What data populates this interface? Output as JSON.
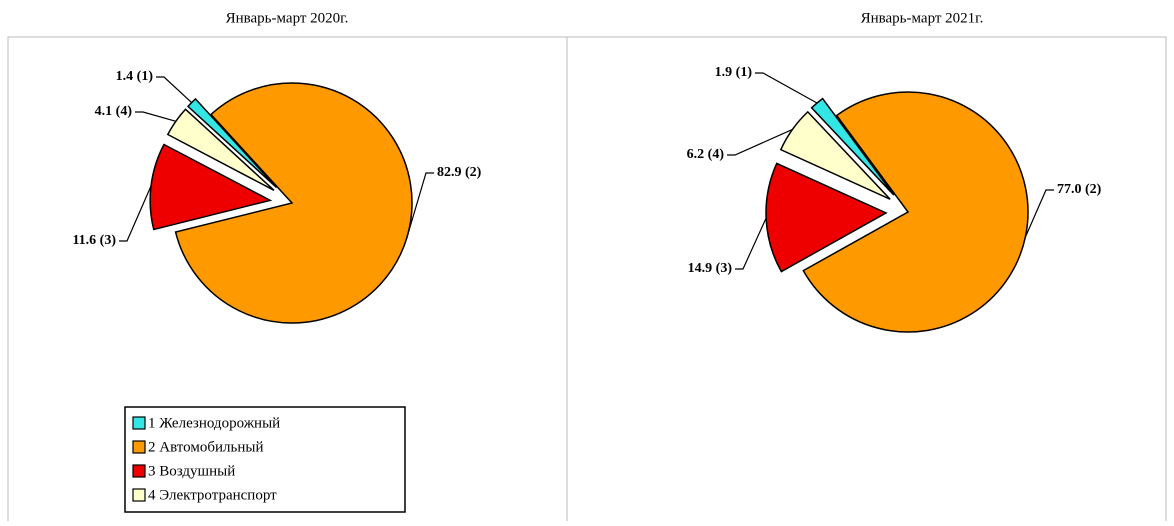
{
  "chart_data": [
    {
      "type": "pie",
      "title": "Январь-март 2020г.",
      "categories": [
        "1 Железнодорожный",
        "2 Автомобильный",
        "3 Воздушный",
        "4 Электротранспорт"
      ],
      "values": [
        1.4,
        82.9,
        11.6,
        4.1
      ],
      "value_labels": [
        "1.4 (1)",
        "82.9 (2)",
        "11.6 (3)",
        "4.1 (4)"
      ],
      "colors": [
        "#33e6e6",
        "#ff9900",
        "#ee0000",
        "#ffffcc"
      ],
      "legend": true
    },
    {
      "type": "pie",
      "title": "Январь-март 2021г.",
      "values": [
        1.9,
        77.0,
        14.9,
        6.2
      ],
      "value_labels": [
        "1.9 (1)",
        "77.0 (2)",
        "14.9 (3)",
        "6.2 (4)"
      ],
      "colors": [
        "#33e6e6",
        "#ff9900",
        "#ee0000",
        "#ffffcc"
      ],
      "legend": false
    }
  ]
}
